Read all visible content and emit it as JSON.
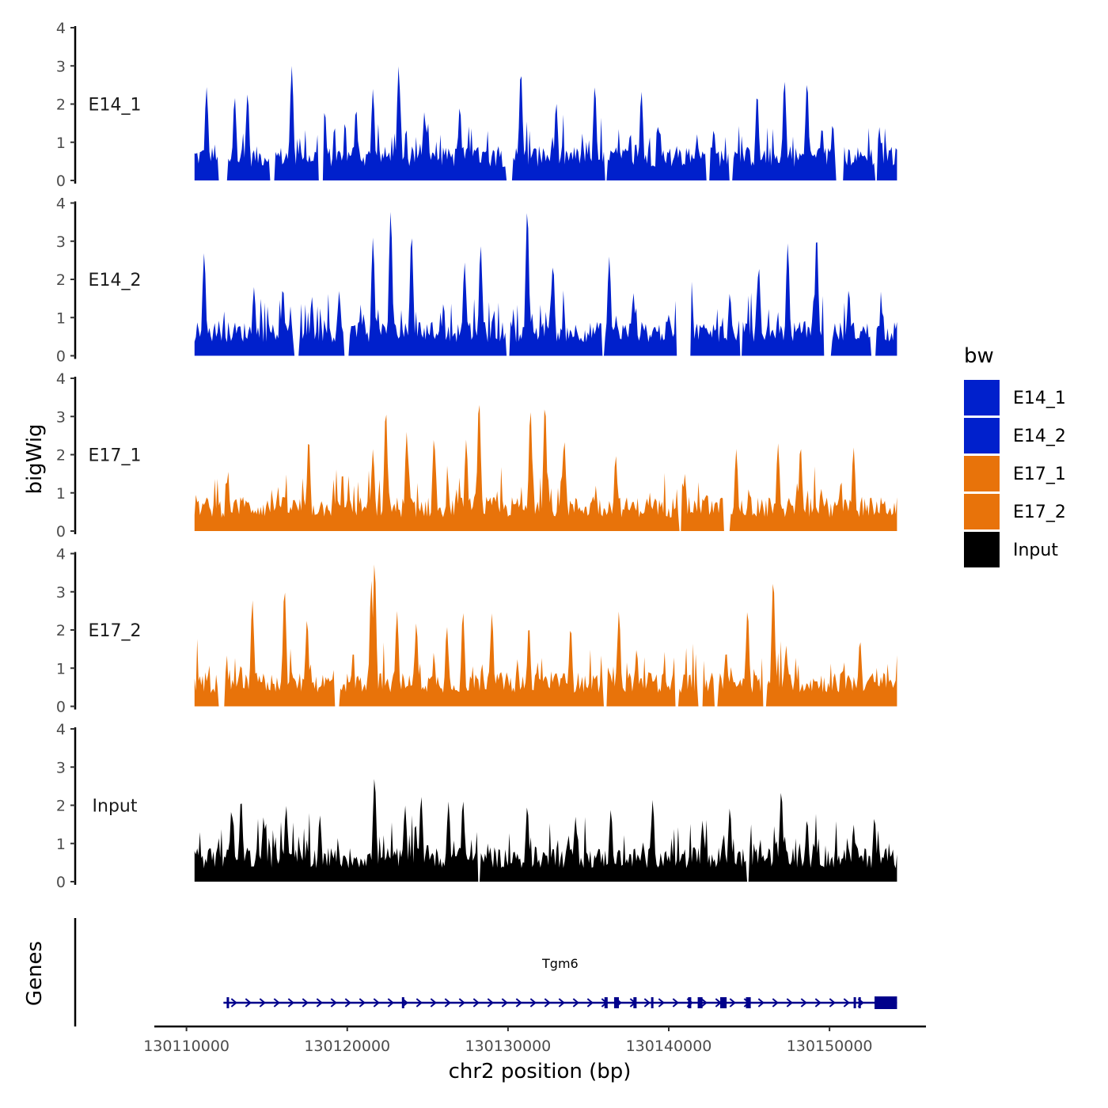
{
  "chart_data": {
    "type": "area",
    "ylabel": "bigWig",
    "xlabel": "chr2 position (bp)",
    "genes_label": "Genes",
    "xlim": [
      130108000,
      130156000
    ],
    "data_range": [
      130110500,
      130154200
    ],
    "x_ticks": [
      130110000,
      130120000,
      130130000,
      130140000,
      130150000
    ],
    "x_tick_labels": [
      "130110000",
      "130120000",
      "130130000",
      "130140000",
      "130150000"
    ],
    "ylim": [
      0,
      4
    ],
    "y_ticks": [
      0,
      1,
      2,
      3,
      4
    ],
    "y_tick_labels": [
      "0",
      "1",
      "2",
      "3",
      "4"
    ],
    "tracks": [
      {
        "name": "E14_1",
        "color": "#0020CC",
        "peaks": [
          [
            130111250,
            2.45
          ],
          [
            130113000,
            2.2
          ],
          [
            130113800,
            2.3
          ],
          [
            130116550,
            3.0
          ],
          [
            130118600,
            1.85
          ],
          [
            130120550,
            1.9
          ],
          [
            130121600,
            2.4
          ],
          [
            130123200,
            3.0
          ],
          [
            130124800,
            1.8
          ],
          [
            130127000,
            1.95
          ],
          [
            130130800,
            2.9
          ],
          [
            130133000,
            2.05
          ],
          [
            130135400,
            2.5
          ],
          [
            130138300,
            2.35
          ],
          [
            130142800,
            1.35
          ],
          [
            130145500,
            2.3
          ],
          [
            130147200,
            2.65
          ],
          [
            130148600,
            2.6
          ],
          [
            130150200,
            1.5
          ],
          [
            130153100,
            1.4
          ]
        ],
        "gaps": [
          [
            130112000,
            130112600
          ],
          [
            130115200,
            130115500
          ],
          [
            130118200,
            130118500
          ],
          [
            130129900,
            130130300
          ],
          [
            130136000,
            130136200
          ],
          [
            130142300,
            130142600
          ],
          [
            130143700,
            130144000
          ],
          [
            130150400,
            130150900
          ],
          [
            130152800,
            130153000
          ]
        ]
      },
      {
        "name": "E14_2",
        "color": "#0020CC",
        "peaks": [
          [
            130111100,
            2.7
          ],
          [
            130114200,
            1.8
          ],
          [
            130116000,
            1.8
          ],
          [
            130117800,
            1.55
          ],
          [
            130119500,
            1.7
          ],
          [
            130121600,
            3.1
          ],
          [
            130122700,
            3.8
          ],
          [
            130124000,
            3.2
          ],
          [
            130127300,
            2.45
          ],
          [
            130128300,
            2.9
          ],
          [
            130131200,
            3.85
          ],
          [
            130132800,
            2.4
          ],
          [
            130136300,
            2.6
          ],
          [
            130137800,
            1.65
          ],
          [
            130141400,
            2.0
          ],
          [
            130143800,
            1.65
          ],
          [
            130145600,
            2.35
          ],
          [
            130147400,
            2.95
          ],
          [
            130149200,
            3.2
          ],
          [
            130151200,
            1.75
          ]
        ],
        "gaps": [
          [
            130116700,
            130117000
          ],
          [
            130119800,
            130120100
          ],
          [
            130129900,
            130130100
          ],
          [
            130135800,
            130136000
          ],
          [
            130140500,
            130141400
          ],
          [
            130144400,
            130144600
          ],
          [
            130149600,
            130150100
          ],
          [
            130152600,
            130152900
          ]
        ]
      },
      {
        "name": "E17_1",
        "color": "#E8730A",
        "peaks": [
          [
            130117600,
            2.45
          ],
          [
            130121600,
            2.15
          ],
          [
            130122400,
            3.2
          ],
          [
            130123700,
            2.6
          ],
          [
            130125400,
            2.45
          ],
          [
            130127400,
            2.4
          ],
          [
            130128200,
            3.45
          ],
          [
            130131400,
            3.2
          ],
          [
            130132300,
            3.35
          ],
          [
            130133500,
            2.4
          ],
          [
            130136700,
            2.0
          ],
          [
            130141000,
            1.5
          ],
          [
            130144200,
            2.15
          ],
          [
            130146800,
            2.3
          ],
          [
            130148200,
            2.25
          ],
          [
            130151500,
            2.2
          ]
        ],
        "gaps": [
          [
            130140600,
            130140800
          ],
          [
            130143400,
            130143800
          ]
        ]
      },
      {
        "name": "E17_2",
        "color": "#E8730A",
        "peaks": [
          [
            130114100,
            2.8
          ],
          [
            130116100,
            3.1
          ],
          [
            130117500,
            2.3
          ],
          [
            130119400,
            1.5
          ],
          [
            130121500,
            3.3
          ],
          [
            130121700,
            3.8
          ],
          [
            130123100,
            2.5
          ],
          [
            130124300,
            2.2
          ],
          [
            130126200,
            2.1
          ],
          [
            130127200,
            2.5
          ],
          [
            130129000,
            2.45
          ],
          [
            130131300,
            2.15
          ],
          [
            130133900,
            2.1
          ],
          [
            130136900,
            2.5
          ],
          [
            130138000,
            1.5
          ],
          [
            130140400,
            1.55
          ],
          [
            130142100,
            1.6
          ],
          [
            130144900,
            2.55
          ],
          [
            130146500,
            3.35
          ],
          [
            130147300,
            1.6
          ],
          [
            130151900,
            1.75
          ]
        ],
        "gaps": [
          [
            130112000,
            130112400
          ],
          [
            130119200,
            130119500
          ],
          [
            130135900,
            130136200
          ],
          [
            130140400,
            130140600
          ],
          [
            130141800,
            130142100
          ],
          [
            130142800,
            130143100
          ],
          [
            130145800,
            130146100
          ]
        ]
      },
      {
        "name": "Input",
        "color": "#000000",
        "peaks": [
          [
            130112800,
            1.9
          ],
          [
            130113400,
            2.2
          ],
          [
            130114800,
            1.7
          ],
          [
            130116200,
            2.0
          ],
          [
            130118300,
            1.75
          ],
          [
            130121700,
            2.75
          ],
          [
            130123600,
            2.0
          ],
          [
            130124600,
            2.25
          ],
          [
            130126300,
            2.1
          ],
          [
            130127200,
            2.15
          ],
          [
            130131200,
            2.0
          ],
          [
            130134200,
            1.7
          ],
          [
            130136400,
            1.9
          ],
          [
            130139000,
            2.15
          ],
          [
            130142100,
            1.6
          ],
          [
            130143800,
            1.95
          ],
          [
            130147000,
            2.4
          ],
          [
            130148600,
            1.65
          ],
          [
            130151500,
            1.5
          ],
          [
            130152800,
            1.7
          ]
        ],
        "gaps": [
          [
            130128100,
            130128300
          ],
          [
            130144800,
            130145000
          ]
        ]
      }
    ],
    "gene": {
      "name": "Tgm6",
      "color": "#00008B",
      "start": 130112300,
      "end": 130154200,
      "exons": [
        [
          130112500,
          130112600
        ],
        [
          130123400,
          130123500
        ],
        [
          130136000,
          130136200
        ],
        [
          130136600,
          130136900
        ],
        [
          130137800,
          130138000
        ],
        [
          130138900,
          130139000
        ],
        [
          130141200,
          130141400
        ],
        [
          130141800,
          130142100
        ],
        [
          130143200,
          130143600
        ],
        [
          130144800,
          130145100
        ],
        [
          130151500,
          130151600
        ],
        [
          130151800,
          130151900
        ],
        [
          130152800,
          130154200
        ]
      ]
    },
    "legend": {
      "title": "bw",
      "items": [
        {
          "label": "E14_1",
          "color": "#0020CC"
        },
        {
          "label": "E14_2",
          "color": "#0020CC"
        },
        {
          "label": "E17_1",
          "color": "#E8730A"
        },
        {
          "label": "E17_2",
          "color": "#E8730A"
        },
        {
          "label": "Input",
          "color": "#000000"
        }
      ]
    }
  }
}
